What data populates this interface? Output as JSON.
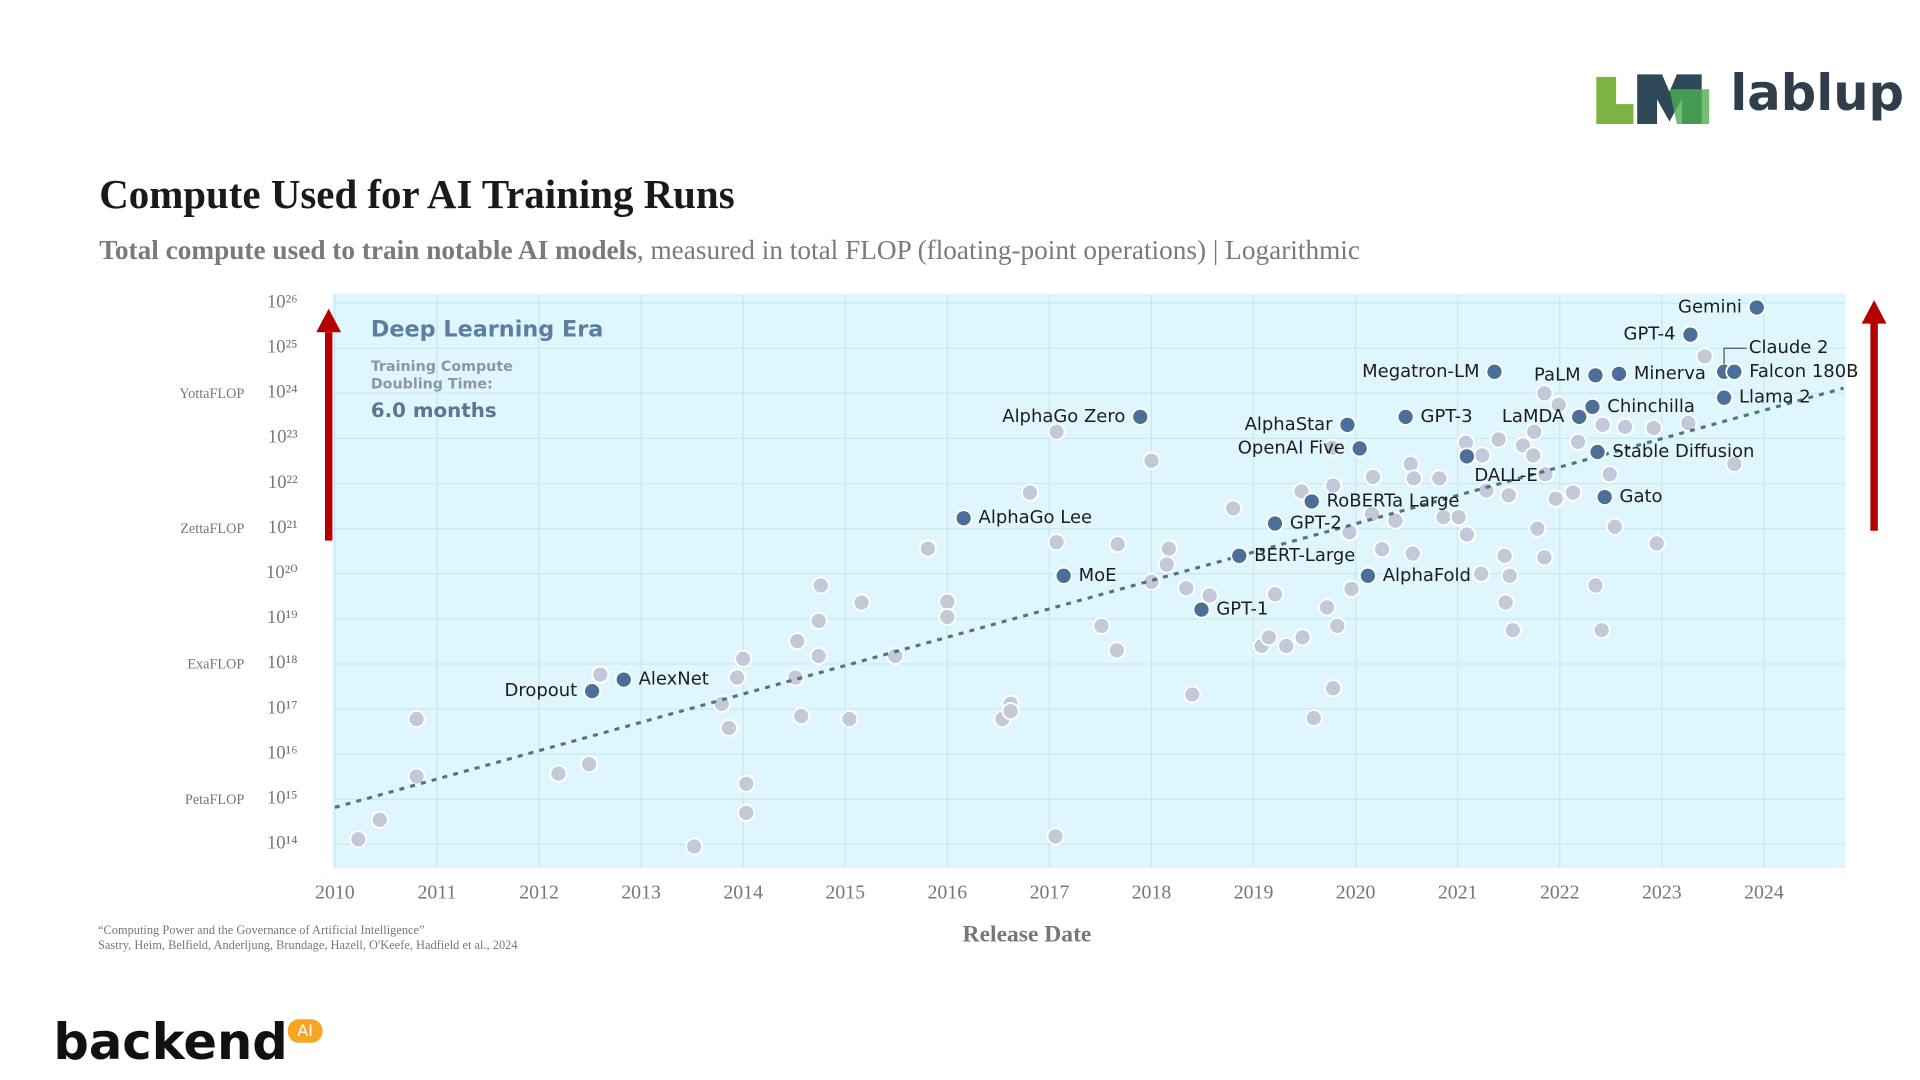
{
  "chart_data": {
    "type": "scatter",
    "title": "Compute Used for AI Training Runs",
    "subtitle": [
      "Total compute used to train notable AI models",
      ", measured in total FLOP (floating-point operations) | Logarithmic"
    ],
    "x_label": "Release Date",
    "log_y": true,
    "grid": true,
    "xlim": [
      2010,
      2024.8
    ],
    "ylim": [
      30000000000000.0,
      1.6e+26
    ],
    "xticks": [
      2010,
      2011,
      2012,
      2013,
      2014,
      2015,
      2016,
      2017,
      2018,
      2019,
      2020,
      2021,
      2022,
      2023,
      2024
    ],
    "yticks": [
      {
        "value": 100000000000000.0,
        "label": "10¹⁴"
      },
      {
        "value": 1000000000000000.0,
        "label": "10¹⁵"
      },
      {
        "value": 1e+16,
        "label": "10¹⁶"
      },
      {
        "value": 1e+17,
        "label": "10¹⁷"
      },
      {
        "value": 1e+18,
        "label": "10¹⁸"
      },
      {
        "value": 1e+19,
        "label": "10¹⁹"
      },
      {
        "value": 1e+20,
        "label": "10²⁰"
      },
      {
        "value": 1e+21,
        "label": "10²¹"
      },
      {
        "value": 1e+22,
        "label": "10²²"
      },
      {
        "value": 1e+23,
        "label": "10²³"
      },
      {
        "value": 1e+24,
        "label": "10²⁴"
      },
      {
        "value": 1e+25,
        "label": "10²⁵"
      },
      {
        "value": 1e+26,
        "label": "10²⁶"
      }
    ],
    "unit_labels": [
      {
        "value": 1000000000000000.0,
        "label": "PetaFLOP"
      },
      {
        "value": 1e+18,
        "label": "ExaFLOP"
      },
      {
        "value": 1e+21,
        "label": "ZettaFLOP"
      },
      {
        "value": 1e+24,
        "label": "YottaFLOP"
      }
    ],
    "annotations": [
      "Deep Learning Era",
      "Training Compute",
      "Doubling Time:",
      "6.0 months"
    ],
    "trend": {
      "color": "#4f7585",
      "x": [
        2010,
        2024.78
      ],
      "values": [
        660000000000000.0,
        1.3e+24
      ]
    },
    "series": [
      {
        "color": "#c3c8da",
        "x": [
          2010.23,
          2010.44,
          2010.8,
          2010.8,
          2012.19,
          2012.49,
          2012.6,
          2013.52,
          2013.79,
          2013.86,
          2013.94,
          2014.0,
          2014.03,
          2014.03,
          2014.51,
          2014.53,
          2014.57,
          2014.74,
          2014.74,
          2014.76,
          2015.04,
          2015.16,
          2015.49,
          2015.81,
          2016.0,
          2016.0,
          2016.54,
          2016.62,
          2016.62,
          2016.81,
          2017.06,
          2017.07,
          2017.07,
          2017.51,
          2017.66,
          2017.67,
          2018.0,
          2018.0,
          2018.15,
          2018.17,
          2018.34,
          2018.4,
          2018.57,
          2018.8,
          2019.08,
          2019.15,
          2019.21,
          2019.32,
          2019.47,
          2019.48,
          2019.59,
          2019.72,
          2019.78,
          2019.82,
          2019.77,
          2019.78,
          2019.94,
          2019.96,
          2020.17,
          2020.16,
          2020.26,
          2020.39,
          2020.54,
          2020.56,
          2020.57,
          2020.82,
          2020.86,
          2021.01,
          2021.08,
          2021.09,
          2021.23,
          2021.24,
          2021.28,
          2021.4,
          2021.46,
          2021.47,
          2021.5,
          2021.51,
          2021.54,
          2021.64,
          2021.74,
          2021.75,
          2021.78,
          2021.85,
          2021.86,
          2021.85,
          2021.96,
          2021.99,
          2022.13,
          2022.18,
          2022.35,
          2022.41,
          2022.42,
          2022.49,
          2022.54,
          2022.64,
          2022.92,
          2022.95,
          2023.26,
          2023.42,
          2023.71
        ],
        "values": [
          130000000000000.0,
          350000000000000.0,
          6e+16,
          3200000000000000.0,
          3700000000000000.0,
          6000000000000000.0,
          5.8e+17,
          90000000000000.0,
          1.3e+17,
          3.8e+16,
          5e+17,
          1.3e+18,
          2200000000000000.0,
          500000000000000.0,
          5e+17,
          3.2e+18,
          7e+16,
          1.5e+18,
          9e+18,
          5.5e+19,
          6e+16,
          2.3e+19,
          1.5e+18,
          3.6e+20,
          2.4e+19,
          1.1e+19,
          6e+16,
          1.3e+17,
          9e+16,
          6.3e+21,
          150000000000000.0,
          1.4e+23,
          5e+20,
          7e+18,
          2e+18,
          4.5e+20,
          3.2e+22,
          6.6e+19,
          1.6e+20,
          3.6e+20,
          4.8e+19,
          2.1e+17,
          3.3e+19,
          2.8e+21,
          2.5e+18,
          3.9e+18,
          3.5e+19,
          2.5e+18,
          6.7e+21,
          3.9e+18,
          6.3e+16,
          1.8e+19,
          2.9e+17,
          7e+18,
          6.2e+22,
          9e+21,
          8.3e+20,
          4.6e+19,
          1.4e+22,
          2.1e+21,
          3.5e+20,
          1.5e+21,
          2.7e+22,
          2.8e+20,
          1.3e+22,
          1.3e+22,
          1.8e+21,
          1.8e+21,
          8e+22,
          7.4e+20,
          1e+20,
          4.2e+22,
          7e+21,
          9.5e+22,
          2.5e+20,
          2.3e+19,
          5.5e+21,
          9e+19,
          5.6e+18,
          7e+22,
          4.2e+22,
          1.4e+23,
          1e+21,
          1e+24,
          1.6e+22,
          2.3e+20,
          4.6e+21,
          5.6e+23,
          6.3e+21,
          8.4e+22,
          5.5e+19,
          5.6e+18,
          2e+23,
          1.6e+22,
          1.1e+21,
          1.8e+23,
          1.7e+23,
          4.7e+20,
          2.2e+23,
          6.6e+24,
          2.7e+22
        ]
      },
      {
        "color": "#4a6f99",
        "labels": [
          "Gemini",
          "GPT-4",
          "Claude 2",
          "Falcon 180B",
          "Llama 2",
          "Megatron-LM",
          "PaLM",
          "Minerva",
          "Chinchilla",
          "LaMDA",
          "GPT-3",
          "AlphaGo Zero",
          "AlphaStar",
          "OpenAI Five",
          "Stable Diffusion",
          "DALL-E",
          "RoBERTa Large",
          "Gato",
          "AlphaGo Lee",
          "GPT-2",
          "BERT-Large",
          "AlphaFold",
          "MoE",
          "GPT-1",
          "AlexNet",
          "Dropout"
        ],
        "x": [
          2023.93,
          2023.28,
          2023.61,
          2023.71,
          2023.61,
          2021.36,
          2022.35,
          2022.58,
          2022.32,
          2022.19,
          2020.49,
          2017.89,
          2019.92,
          2020.04,
          2022.37,
          2021.09,
          2019.57,
          2022.44,
          2016.16,
          2019.21,
          2018.86,
          2020.12,
          2017.14,
          2018.49,
          2012.83,
          2012.52
        ],
        "values": [
          8e+25,
          2e+25,
          3e+24,
          3e+24,
          8e+23,
          3e+24,
          2.5e+24,
          2.7e+24,
          5e+23,
          3e+23,
          3e+23,
          3e+23,
          2e+23,
          6e+22,
          5e+22,
          4e+22,
          4e+21,
          5e+21,
          1.7e+21,
          1.3e+21,
          2.5e+20,
          9e+19,
          9e+19,
          1.6e+19,
          4.5e+17,
          2.5e+17
        ]
      }
    ],
    "source": [
      "“Computing Power and the Governance of Artificial Intelligence”",
      "Sastry, Heim, Belfield, Anderljung, Brundage, Hazell, O'Keefe, Hadfield et al., 2024"
    ]
  },
  "branding": {
    "top_logo": "lablup",
    "bottom_logo": "backend",
    "bottom_badge": "AI"
  }
}
